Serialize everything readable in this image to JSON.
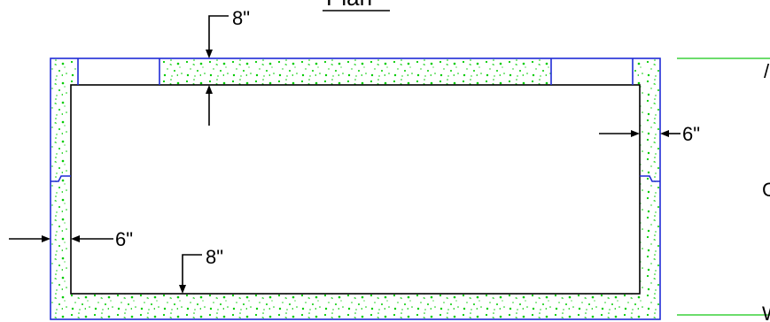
{
  "drawing": {
    "title": "Plan",
    "dimensions": {
      "top_wall": "8\"",
      "bottom_wall": "8\"",
      "left_wall": "6\"",
      "right_wall": "6\""
    },
    "edge_labels": [
      "/",
      "C",
      "W"
    ],
    "colors": {
      "outline": "#1f2bd6",
      "fill_speckle": "#00cc00",
      "inner": "#000000",
      "callout_line": "#3bd13b"
    }
  }
}
